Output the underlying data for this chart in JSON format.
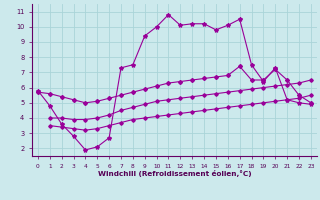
{
  "xlabel": "Windchill (Refroidissement éolien,°C)",
  "xlim": [
    -0.5,
    23.5
  ],
  "ylim": [
    1.5,
    11.5
  ],
  "xticks": [
    0,
    1,
    2,
    3,
    4,
    5,
    6,
    7,
    8,
    9,
    10,
    11,
    12,
    13,
    14,
    15,
    16,
    17,
    18,
    19,
    20,
    21,
    22,
    23
  ],
  "yticks": [
    2,
    3,
    4,
    5,
    6,
    7,
    8,
    9,
    10,
    11
  ],
  "background_color": "#cce9ec",
  "grid_color": "#aad4d8",
  "line_color": "#990099",
  "line1_x": [
    0,
    1,
    2,
    3,
    4,
    5,
    6,
    7,
    8,
    9,
    10,
    11,
    12,
    13,
    14,
    15,
    16,
    17,
    18,
    19,
    20,
    21,
    22,
    23
  ],
  "line1_y": [
    5.8,
    4.8,
    3.6,
    2.8,
    1.9,
    2.1,
    2.7,
    7.3,
    7.5,
    9.4,
    10.0,
    10.8,
    10.1,
    10.2,
    10.2,
    9.8,
    10.1,
    10.5,
    7.5,
    6.4,
    7.3,
    5.2,
    5.0,
    4.9
  ],
  "line2_x": [
    1,
    2,
    3,
    4,
    5,
    6,
    7,
    8,
    9,
    10,
    11,
    12,
    13,
    14,
    15,
    16,
    17,
    18,
    19,
    20,
    21,
    22,
    23
  ],
  "line2_y": [
    4.0,
    4.0,
    3.9,
    3.9,
    4.0,
    4.2,
    4.5,
    4.7,
    4.9,
    5.1,
    5.2,
    5.3,
    5.4,
    5.5,
    5.6,
    5.7,
    5.8,
    5.9,
    6.0,
    6.1,
    6.2,
    6.3,
    6.5
  ],
  "line3_x": [
    1,
    2,
    3,
    4,
    5,
    6,
    7,
    8,
    9,
    10,
    11,
    12,
    13,
    14,
    15,
    16,
    17,
    18,
    19,
    20,
    21,
    22,
    23
  ],
  "line3_y": [
    3.5,
    3.4,
    3.3,
    3.2,
    3.3,
    3.5,
    3.7,
    3.9,
    4.0,
    4.1,
    4.2,
    4.3,
    4.4,
    4.5,
    4.6,
    4.7,
    4.8,
    4.9,
    5.0,
    5.1,
    5.2,
    5.3,
    5.5
  ],
  "line4_x": [
    0,
    1,
    2,
    3,
    4,
    5,
    6,
    7,
    8,
    9,
    10,
    11,
    12,
    13,
    14,
    15,
    16,
    17,
    18,
    19,
    20,
    21,
    22,
    23
  ],
  "line4_y": [
    5.7,
    5.6,
    5.4,
    5.2,
    5.0,
    5.1,
    5.3,
    5.5,
    5.7,
    5.9,
    6.1,
    6.3,
    6.4,
    6.5,
    6.6,
    6.7,
    6.8,
    7.4,
    6.5,
    6.5,
    7.2,
    6.5,
    5.5,
    5.0
  ]
}
